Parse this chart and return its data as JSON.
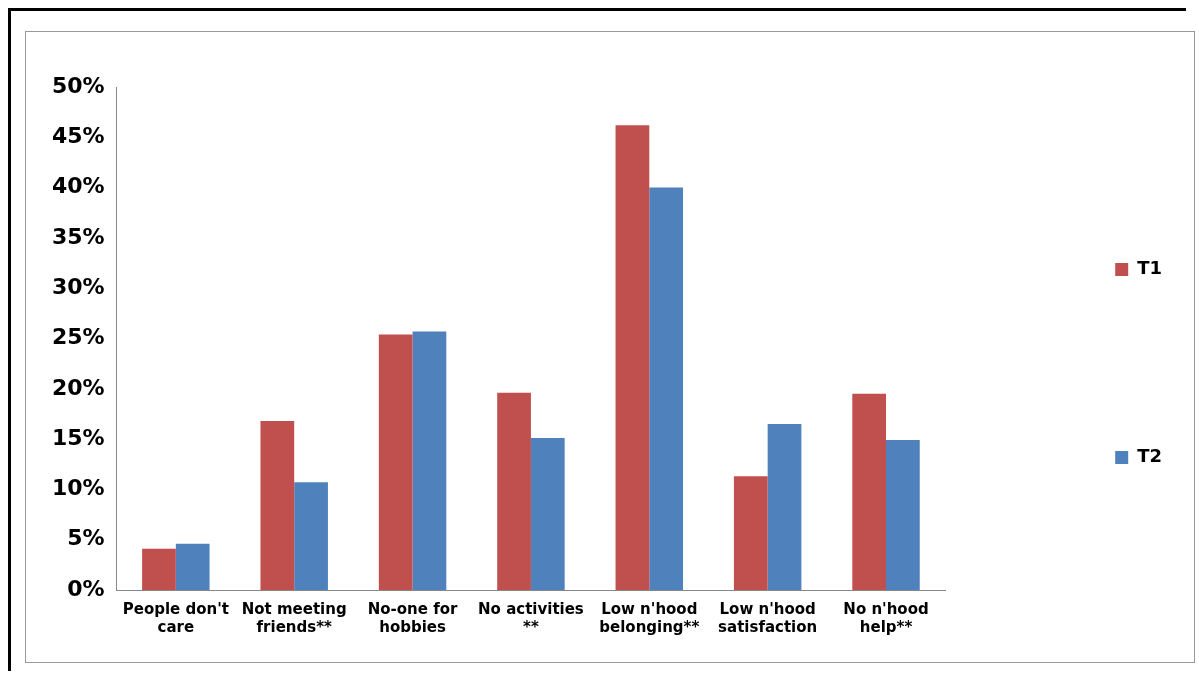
{
  "chart_data": {
    "type": "bar",
    "categories": [
      "People don't care",
      "Not meeting friends**",
      "No-one for hobbies",
      "No activities **",
      "Low n'hood belonging**",
      "Low n'hood satisfaction",
      "No n'hood help**"
    ],
    "series": [
      {
        "name": "T1",
        "color": "#c0504d",
        "values": [
          4.1,
          16.8,
          25.4,
          19.6,
          46.2,
          11.3,
          19.5
        ]
      },
      {
        "name": "T2",
        "color": "#4f81bd",
        "values": [
          4.6,
          10.7,
          25.7,
          15.1,
          40.0,
          16.5,
          14.9
        ]
      }
    ],
    "ylim": [
      0,
      50
    ],
    "yticks": [
      {
        "value": 0,
        "label": "0%"
      },
      {
        "value": 5,
        "label": "5%"
      },
      {
        "value": 10,
        "label": "10%"
      },
      {
        "value": 15,
        "label": "15%"
      },
      {
        "value": 20,
        "label": "20%"
      },
      {
        "value": 25,
        "label": "25%"
      },
      {
        "value": 30,
        "label": "30%"
      },
      {
        "value": 35,
        "label": "35%"
      },
      {
        "value": 40,
        "label": "40%"
      },
      {
        "value": 45,
        "label": "45%"
      },
      {
        "value": 50,
        "label": "50%"
      }
    ],
    "grid": false,
    "legend": "right"
  }
}
